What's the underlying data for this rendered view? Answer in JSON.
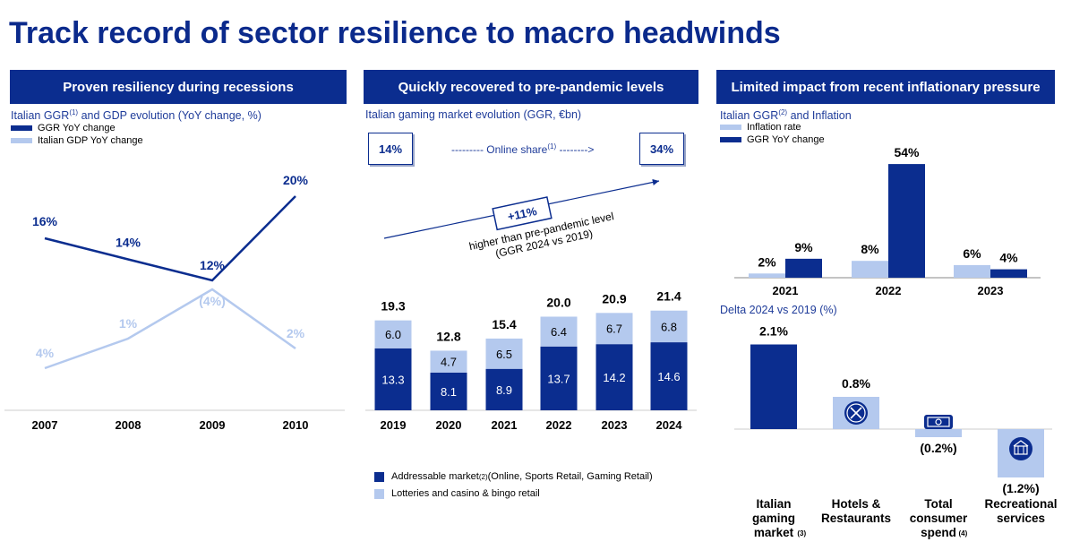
{
  "title": "Track record of sector resilience to macro headwinds",
  "panels": [
    {
      "header": "Proven resiliency during recessions"
    },
    {
      "header": "Quickly recovered to pre-pandemic levels"
    },
    {
      "header": "Limited impact from recent inflationary pressure"
    }
  ],
  "panel1": {
    "subtitle": "Italian GGR",
    "subtitle_sup": "(1)",
    "subtitle_rest": " and GDP evolution (YoY change, %)",
    "legend": [
      {
        "label": "GGR YoY change",
        "color": "#0b2d8f"
      },
      {
        "label": "Italian GDP YoY change",
        "color": "#b4c9ee"
      }
    ]
  },
  "panel2": {
    "subtitle": "Italian gaming market evolution (GGR, €bn)",
    "online_start": "14%",
    "online_end": "34%",
    "online_text": "--------- Online share",
    "online_sup": "(1)",
    "online_arrow": " -------->",
    "growth_badge": "+11%",
    "growth_note_1": "higher than pre-pandemic level",
    "growth_note_2": "(GGR 2024 vs 2019)",
    "legend": [
      {
        "label": "Addressable market",
        "sup": "(2)",
        "rest": " (Online, Sports Retail, Gaming Retail)",
        "color": "#0b2d8f"
      },
      {
        "label": "Lotteries and casino & bingo retail",
        "sup": "",
        "rest": "",
        "color": "#b4c9ee"
      }
    ]
  },
  "panel3": {
    "subtitle": "Italian GGR",
    "subtitle_sup": "(2)",
    "subtitle_rest": " and Inflation",
    "legend": [
      {
        "label": "Inflation rate",
        "color": "#b4c9ee"
      },
      {
        "label": "GGR YoY change",
        "color": "#0b2d8f"
      }
    ],
    "delta_title": "Delta 2024 vs 2019 (%)"
  },
  "chart_data": [
    {
      "type": "line",
      "title": "Italian GGR and GDP evolution (YoY change, %)",
      "categories": [
        "2007",
        "2008",
        "2009",
        "2010"
      ],
      "series": [
        {
          "name": "GGR YoY change",
          "values": [
            16,
            14,
            12,
            20
          ],
          "labels": [
            "16%",
            "14%",
            "12%",
            "20%"
          ],
          "color": "#0b2d8f"
        },
        {
          "name": "Italian GDP YoY change",
          "values": [
            4,
            1,
            -4,
            2
          ],
          "labels": [
            "4%",
            "1%",
            "(4%)",
            "2%"
          ],
          "color": "#b4c9ee"
        }
      ]
    },
    {
      "type": "bar",
      "stacked": true,
      "title": "Italian gaming market evolution (GGR, €bn)",
      "categories": [
        "2019",
        "2020",
        "2021",
        "2022",
        "2023",
        "2024"
      ],
      "totals": [
        "19.3",
        "12.8",
        "15.4",
        "20.0",
        "20.9",
        "21.4"
      ],
      "series": [
        {
          "name": "Addressable market",
          "values": [
            13.3,
            8.1,
            8.9,
            13.7,
            14.2,
            14.6
          ],
          "labels": [
            "13.3",
            "8.1",
            "8.9",
            "13.7",
            "14.2",
            "14.6"
          ],
          "color": "#0b2d8f"
        },
        {
          "name": "Lotteries and casino & bingo retail",
          "values": [
            6.0,
            4.7,
            6.5,
            6.4,
            6.7,
            6.8
          ],
          "labels": [
            "6.0",
            "4.7",
            "6.5",
            "6.4",
            "6.7",
            "6.8"
          ],
          "color": "#b4c9ee"
        }
      ]
    },
    {
      "type": "bar",
      "title": "Italian GGR and Inflation",
      "categories": [
        "2021",
        "2022",
        "2023"
      ],
      "series": [
        {
          "name": "Inflation rate",
          "values": [
            2,
            8,
            6
          ],
          "labels": [
            "2%",
            "8%",
            "6%"
          ],
          "color": "#b4c9ee"
        },
        {
          "name": "GGR YoY change",
          "values": [
            9,
            54,
            4
          ],
          "labels": [
            "9%",
            "54%",
            "4%"
          ],
          "color": "#0b2d8f"
        }
      ]
    },
    {
      "type": "bar",
      "title": "Delta 2024 vs 2019 (%)",
      "categories": [
        {
          "lines": [
            "Italian",
            "gaming",
            "market"
          ],
          "sup": "(3)",
          "icon": ""
        },
        {
          "lines": [
            "Hotels &",
            "Restaurants"
          ],
          "sup": "",
          "icon": "restaurant-icon"
        },
        {
          "lines": [
            "Total",
            "consumer",
            "spend"
          ],
          "sup": "(4)",
          "icon": "money-icon"
        },
        {
          "lines": [
            "Recreational",
            "services"
          ],
          "sup": "",
          "icon": "recreation-icon"
        }
      ],
      "values": [
        2.1,
        0.8,
        -0.2,
        -1.2
      ],
      "labels": [
        "2.1%",
        "0.8%",
        "(0.2%)",
        "(1.2%)"
      ],
      "colors": [
        "#0b2d8f",
        "#b4c9ee",
        "#b4c9ee",
        "#b4c9ee"
      ]
    }
  ]
}
